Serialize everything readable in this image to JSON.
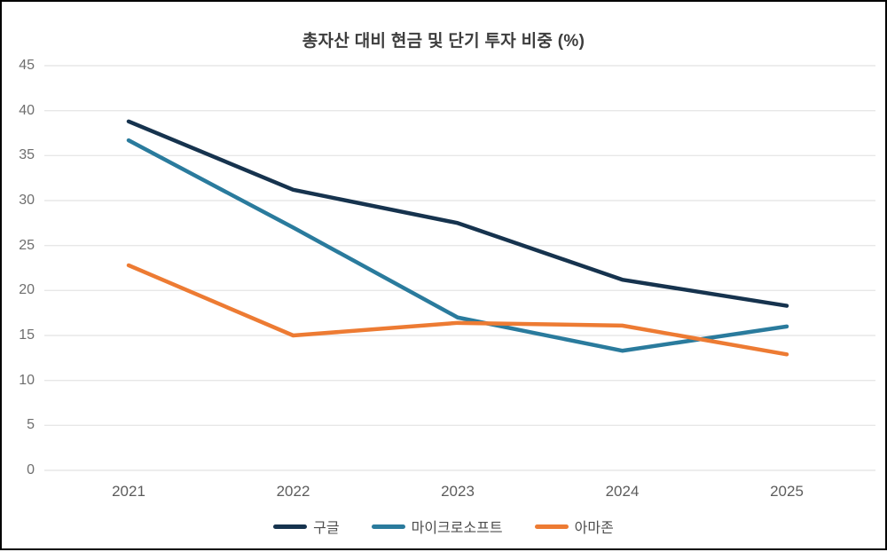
{
  "page": {
    "background_color": "#ffffff",
    "border_color": "#000000"
  },
  "chart_data": {
    "type": "line",
    "title": "총자산 대비 현금 및 단기 투자 비중 (%)",
    "xlabel": "",
    "ylabel": "",
    "categories": [
      "2021",
      "2022",
      "2023",
      "2024",
      "2025"
    ],
    "series": [
      {
        "key": "google",
        "name": "구글",
        "color": "#16334e",
        "values": [
          38.8,
          31.2,
          27.5,
          21.2,
          18.3
        ]
      },
      {
        "key": "microsoft",
        "name": "마이크로소프트",
        "color": "#2a7b9d",
        "values": [
          36.7,
          27.0,
          17.0,
          13.3,
          16.0
        ]
      },
      {
        "key": "amazon",
        "name": "아마존",
        "color": "#ed7b33",
        "values": [
          22.8,
          15.0,
          16.4,
          16.1,
          12.9
        ]
      }
    ],
    "ylim": [
      0,
      45
    ],
    "ytick_step": 5,
    "yticks": [
      0,
      5,
      10,
      15,
      20,
      25,
      30,
      35,
      40,
      45
    ],
    "grid": "horizontal",
    "gridline_color": "#e7e7e7",
    "legend_position": "bottom"
  }
}
